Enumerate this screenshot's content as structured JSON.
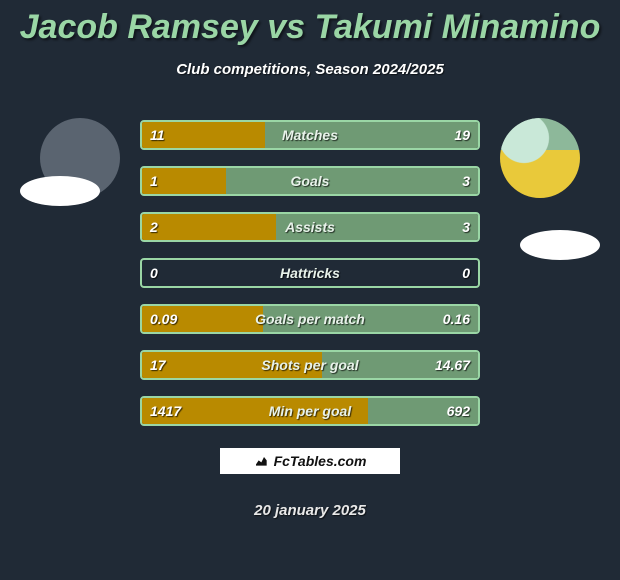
{
  "title": "Jacob Ramsey vs Takumi Minamino",
  "subtitle": "Club competitions, Season 2024/2025",
  "date": "20 january 2025",
  "brand": "FcTables.com",
  "colors": {
    "left_bar": "#b98a00",
    "right_bar": "#6f9a74",
    "border": "#9ad6a5",
    "bg": "#202a36"
  },
  "fonts": {
    "title_size": 34,
    "subtitle_size": 15,
    "stat_size": 14
  },
  "stats": [
    {
      "label": "Matches",
      "left_val": "11",
      "right_val": "19",
      "left_pct": 36.7,
      "right_pct": 63.3
    },
    {
      "label": "Goals",
      "left_val": "1",
      "right_val": "3",
      "left_pct": 25.0,
      "right_pct": 75.0
    },
    {
      "label": "Assists",
      "left_val": "2",
      "right_val": "3",
      "left_pct": 40.0,
      "right_pct": 60.0
    },
    {
      "label": "Hattricks",
      "left_val": "0",
      "right_val": "0",
      "left_pct": 0.0,
      "right_pct": 0.0
    },
    {
      "label": "Goals per match",
      "left_val": "0.09",
      "right_val": "0.16",
      "left_pct": 36.0,
      "right_pct": 64.0
    },
    {
      "label": "Shots per goal",
      "left_val": "17",
      "right_val": "14.67",
      "left_pct": 53.7,
      "right_pct": 46.3
    },
    {
      "label": "Min per goal",
      "left_val": "1417",
      "right_val": "692",
      "left_pct": 67.2,
      "right_pct": 32.8
    }
  ]
}
